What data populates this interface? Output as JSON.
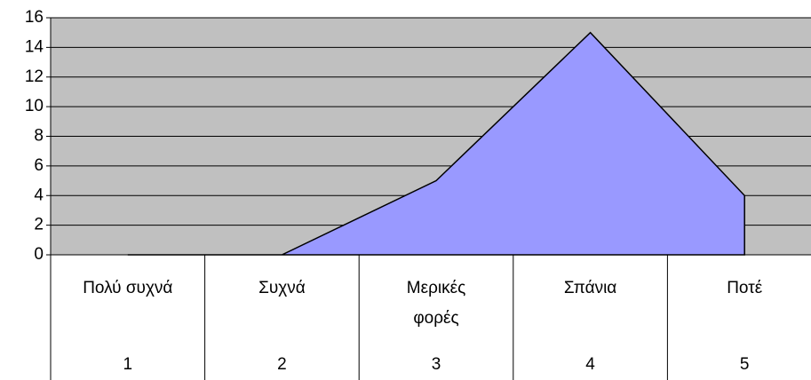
{
  "chart_data": {
    "type": "area",
    "categories": [
      "Πολύ συχνά",
      "Συχνά",
      "Μερικές φορές",
      "Σπάνια",
      "Ποτέ"
    ],
    "category_codes": [
      "1",
      "2",
      "3",
      "4",
      "5"
    ],
    "values": [
      0,
      0,
      5,
      15,
      4
    ],
    "color": "#9999ff",
    "plot_background": "#c0c0c0",
    "ylim": [
      0,
      16
    ],
    "yticks": [
      0,
      2,
      4,
      6,
      8,
      10,
      12,
      14,
      16
    ],
    "grid": true
  }
}
